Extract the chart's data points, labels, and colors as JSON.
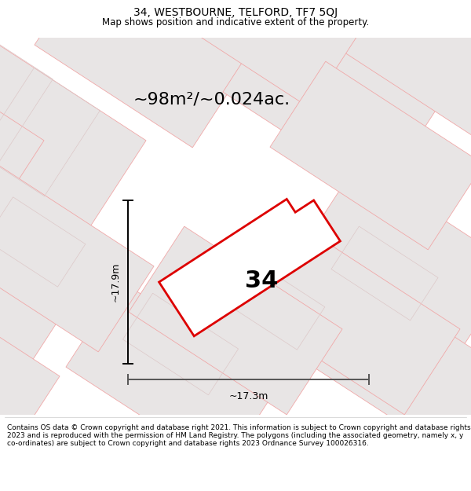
{
  "title_line1": "34, WESTBOURNE, TELFORD, TF7 5QJ",
  "title_line2": "Map shows position and indicative extent of the property.",
  "area_text": "~98m²/~0.024ac.",
  "label_34": "34",
  "dim_height": "~17.9m",
  "dim_width": "~17.3m",
  "footer_text": "Contains OS data © Crown copyright and database right 2021. This information is subject to Crown copyright and database rights 2023 and is reproduced with the permission of HM Land Registry. The polygons (including the associated geometry, namely x, y co-ordinates) are subject to Crown copyright and database rights 2023 Ordnance Survey 100026316.",
  "bg_color": "#f7f6f6",
  "map_bg": "#eeecec",
  "neighbor_fill": "#e8e5e5",
  "neighbor_edge": "#f0a8a8",
  "neighbor_edge_thin": "#ddc8c8",
  "main_fill": "#ffffff",
  "main_edge": "#dd0000",
  "dim_color": "#555555",
  "title_bg": "#ffffff",
  "footer_bg": "#ffffff",
  "title_fontsize": 10,
  "subtitle_fontsize": 8.5,
  "area_fontsize": 16,
  "label_fontsize": 22,
  "dim_fontsize": 9,
  "footer_fontsize": 6.5
}
